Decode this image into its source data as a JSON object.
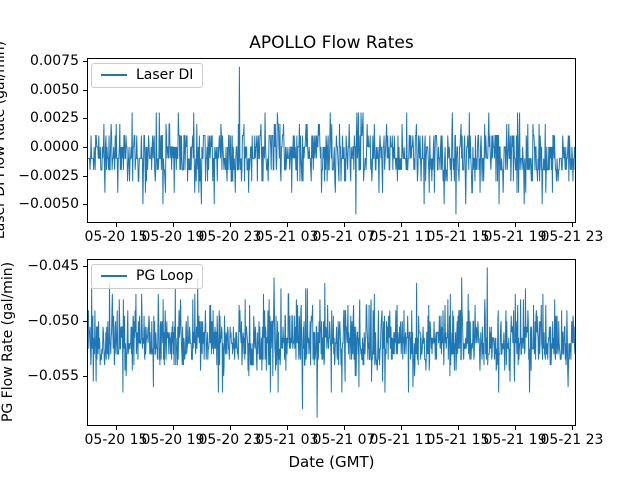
{
  "figure": {
    "title": "APOLLO Flow Rates",
    "xlabel": "Date (GMT)",
    "background_color": "#ffffff",
    "text_color": "#000000",
    "accent_color": "#1f77b4"
  },
  "chart_data": [
    {
      "type": "line",
      "title": "APOLLO Flow Rates",
      "series_name": "Laser DI",
      "legend_label": "Laser DI",
      "legend_loc": "upper left",
      "ylabel": "Laser DI Flow Rate (gal/min)",
      "xlabel": "",
      "line_color": "#1f77b4",
      "grid": false,
      "ylim": [
        -0.00655,
        0.00767
      ],
      "yticks": {
        "values": [
          0.0075,
          0.005,
          0.0025,
          0.0,
          -0.0025,
          -0.005
        ],
        "labels": [
          "0.0075",
          "0.0050",
          "0.0025",
          "0.0000",
          "−0.0025",
          "−0.0050"
        ]
      },
      "xticks": {
        "fractions": [
          0.0593,
          0.1759,
          0.2924,
          0.409,
          0.5256,
          0.6421,
          0.7587,
          0.8753,
          0.9918
        ],
        "labels": [
          "05-20 15",
          "05-20 19",
          "05-20 23",
          "05-21 03",
          "05-21 07",
          "05-21 11",
          "05-21 15",
          "05-21 19",
          "05-21 23"
        ]
      },
      "signal": {
        "description": "Dense quantized noise in ~0.001 gal/min steps; solid band −0.002…0.000, frequent excursions to 0.001/−0.003, rare to 0.003/−0.005; single spike to 0.0070 near 05-20 23:40",
        "seed": 11,
        "n_points": 950,
        "levels": [
          0.003,
          0.002,
          0.001,
          0.0,
          -0.001,
          -0.002,
          -0.003,
          -0.004,
          -0.005,
          -0.0059
        ],
        "weights": [
          0.012,
          0.05,
          0.14,
          0.22,
          0.25,
          0.2,
          0.09,
          0.025,
          0.011,
          0.002
        ],
        "extremes": [
          {
            "x_frac": 0.311,
            "value": 0.007
          },
          {
            "x_frac": 0.55,
            "value": -0.0059
          }
        ]
      }
    },
    {
      "type": "line",
      "title": "APOLLO Flow Rates",
      "series_name": "PG Loop",
      "legend_label": "PG Loop",
      "legend_loc": "upper left",
      "ylabel": "PG Flow Rate (gal/min)",
      "xlabel": "Date (GMT)",
      "line_color": "#1f77b4",
      "grid": false,
      "ylim": [
        -0.05946,
        -0.04441
      ],
      "yticks": {
        "values": [
          -0.045,
          -0.05,
          -0.055
        ],
        "labels": [
          "−0.045",
          "−0.050",
          "−0.055"
        ]
      },
      "xticks": {
        "fractions": [
          0.0593,
          0.1759,
          0.2924,
          0.409,
          0.5256,
          0.6421,
          0.7587,
          0.8753,
          0.9918
        ],
        "labels": [
          "05-20 15",
          "05-20 19",
          "05-20 23",
          "05-21 03",
          "05-21 07",
          "05-21 11",
          "05-21 15",
          "05-21 19",
          "05-21 23"
        ]
      },
      "signal": {
        "description": "Dense quantized noise in ~0.0005 gal/min steps; solid band −0.0535…−0.051, spikes up to ~−0.046 and down to ~−0.0585",
        "seed": 23,
        "n_points": 1200,
        "levels": [
          -0.046,
          -0.0465,
          -0.047,
          -0.0475,
          -0.048,
          -0.0485,
          -0.049,
          -0.0495,
          -0.05,
          -0.0505,
          -0.051,
          -0.0515,
          -0.052,
          -0.0525,
          -0.053,
          -0.0535,
          -0.054,
          -0.0545,
          -0.055,
          -0.0555,
          -0.056,
          -0.0565,
          -0.057,
          -0.0575,
          -0.058,
          -0.0585
        ],
        "weights": [
          0.002,
          0.003,
          0.005,
          0.008,
          0.012,
          0.02,
          0.03,
          0.045,
          0.055,
          0.075,
          0.1,
          0.12,
          0.13,
          0.125,
          0.115,
          0.075,
          0.04,
          0.016,
          0.008,
          0.005,
          0.004,
          0.003,
          0.002,
          0.0015,
          0.001,
          0.0005
        ],
        "extremes": [
          {
            "x_frac": 0.225,
            "value": -0.0461
          },
          {
            "x_frac": 0.47,
            "value": -0.0588
          },
          {
            "x_frac": 0.82,
            "value": -0.0451
          }
        ]
      }
    }
  ]
}
